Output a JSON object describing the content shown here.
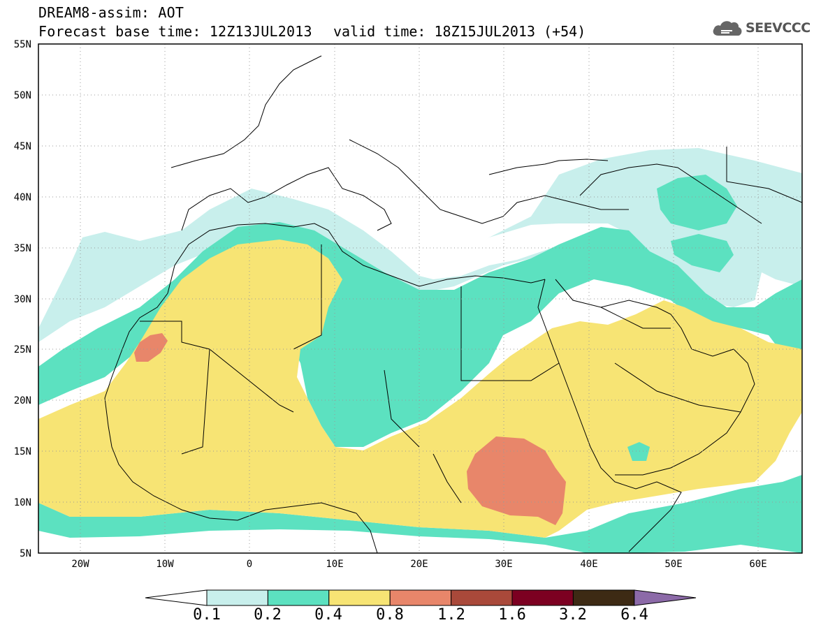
{
  "header": {
    "title": "DREAM8-assim: AOT",
    "base_time": "Forecast base time: 12Z13JUL2013",
    "valid_time": "valid time: 18Z15JUL2013 (+54)",
    "logo_text": "SEEVCCC"
  },
  "map": {
    "lon_range": [
      -25,
      65
    ],
    "lat_range": [
      5,
      55
    ],
    "lat_labels": [
      "55N",
      "50N",
      "45N",
      "40N",
      "35N",
      "30N",
      "25N",
      "20N",
      "15N",
      "10N",
      "5N"
    ],
    "lon_labels": [
      "20W",
      "10W",
      "0",
      "10E",
      "20E",
      "30E",
      "40E",
      "50E",
      "60E"
    ],
    "grid": "dotted"
  },
  "colorbar": {
    "thresholds": [
      "0.1",
      "0.2",
      "0.4",
      "0.8",
      "1.2",
      "1.6",
      "3.2",
      "6.4"
    ],
    "colors": [
      "#ffffff",
      "#c8efec",
      "#5ce1c0",
      "#f7e474",
      "#e8866a",
      "#a9493a",
      "#7c0021",
      "#3d2a14",
      "#8c6aa8"
    ]
  }
}
